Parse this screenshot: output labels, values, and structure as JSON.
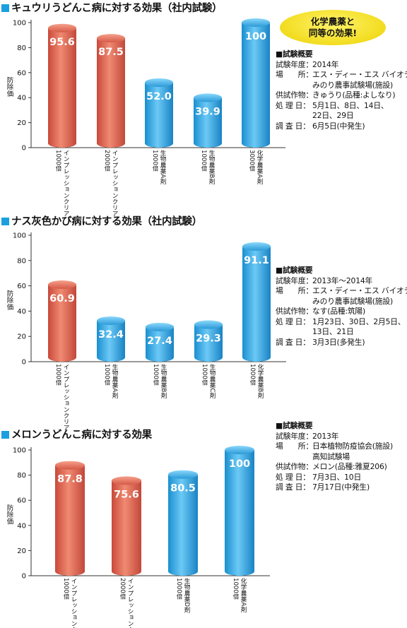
{
  "colors": {
    "accent": "#1aa0de",
    "red_bar": "#e06a55",
    "blue_bar": "#38aee8"
  },
  "sections": [
    {
      "title": "キュウリうどんこ病に対する効果（社内試験）",
      "badge": {
        "line1": "化学農薬と",
        "line2": "同等の効果!"
      },
      "info": {
        "heading": "■試験概要",
        "rows": [
          {
            "label": "試験年度：",
            "value": "2014年"
          },
          {
            "label": "場　　所：",
            "value": "エス・ディー・エス バイオテック"
          },
          {
            "label": "",
            "value": "みのり農事試験場(施設)"
          },
          {
            "label": "供試作物：",
            "value": "きゅうり(品種:よしなり)"
          },
          {
            "label": "処 理 日：",
            "value": "5月1日、8日、14日、"
          },
          {
            "label": "",
            "value": "22日、29日"
          },
          {
            "label": "調 査 日：",
            "value": "6月5日(中発生)"
          }
        ]
      }
    },
    {
      "title": "ナス灰色かび病に対する効果（社内試験）",
      "info": {
        "heading": "■試験概要",
        "rows": [
          {
            "label": "試験年度：",
            "value": "2013年〜2014年"
          },
          {
            "label": "場　　所：",
            "value": "エス・ディー・エス バイオテック"
          },
          {
            "label": "",
            "value": "みのり農事試験場(施設)"
          },
          {
            "label": "供試作物：",
            "value": "なす(品種:筑陽)"
          },
          {
            "label": "処 理 日：",
            "value": "1月23日、30日、2月5日、"
          },
          {
            "label": "",
            "value": "13日、21日"
          },
          {
            "label": "調 査 日：",
            "value": "3月3日(多発生)"
          }
        ]
      }
    },
    {
      "title": "メロンうどんこ病に対する効果",
      "info": {
        "heading": "■試験概要",
        "rows": [
          {
            "label": "試験年度：",
            "value": "2013年"
          },
          {
            "label": "場　　所：",
            "value": "日本植物防疫協会(施設)"
          },
          {
            "label": "",
            "value": "高知試験場"
          },
          {
            "label": "供試作物：",
            "value": "メロン(品種:雅夏206)"
          },
          {
            "label": "処 理 日：",
            "value": "7月3日、10日"
          },
          {
            "label": "調 査 日：",
            "value": "7月17日(中発生)"
          }
        ]
      }
    }
  ],
  "chart_data": [
    {
      "type": "bar",
      "title": "キュウリうどんこ病に対する効果（社内試験）",
      "ylabel": "防除価",
      "ylim": [
        0,
        100
      ],
      "yticks": [
        0,
        20,
        40,
        60,
        80,
        100
      ],
      "categories": [
        {
          "name": "インプレッションクリア",
          "dose": "1000倍",
          "color": "red"
        },
        {
          "name": "インプレッションクリア",
          "dose": "2000倍",
          "color": "red"
        },
        {
          "name": "生物農薬A剤",
          "dose": "1000倍",
          "color": "blue"
        },
        {
          "name": "生物農薬B剤",
          "dose": "1000倍",
          "color": "blue"
        },
        {
          "name": "化学農薬A剤",
          "dose": "3000倍",
          "color": "blue"
        }
      ],
      "values": [
        95.6,
        87.5,
        52.0,
        39.9,
        100
      ],
      "labels": [
        "95.6",
        "87.5",
        "52.0",
        "39.9",
        "100"
      ]
    },
    {
      "type": "bar",
      "title": "ナス灰色かび病に対する効果（社内試験）",
      "ylabel": "防除価",
      "ylim": [
        0,
        100
      ],
      "yticks": [
        0,
        20,
        40,
        60,
        80,
        100
      ],
      "categories": [
        {
          "name": "インプレッションクリア",
          "dose": "1000倍",
          "color": "red"
        },
        {
          "name": "生物農薬A剤",
          "dose": "1000倍",
          "color": "blue"
        },
        {
          "name": "生物農薬B剤",
          "dose": "1000倍",
          "color": "blue"
        },
        {
          "name": "生物農薬C剤",
          "dose": "1000倍",
          "color": "blue"
        },
        {
          "name": "化学農薬B剤",
          "dose": "1000倍",
          "color": "blue"
        }
      ],
      "values": [
        60.9,
        32.4,
        27.4,
        29.3,
        91.1
      ],
      "labels": [
        "60.9",
        "32.4",
        "27.4",
        "29.3",
        "91.1"
      ]
    },
    {
      "type": "bar",
      "title": "メロンうどんこ病に対する効果",
      "ylabel": "防除価",
      "ylim": [
        0,
        100
      ],
      "yticks": [
        0,
        20,
        40,
        60,
        80,
        100
      ],
      "categories": [
        {
          "name": "インプレッションクリア",
          "dose": "1000倍",
          "color": "red"
        },
        {
          "name": "インプレッションクリア",
          "dose": "2000倍",
          "color": "red"
        },
        {
          "name": "生物農薬D剤",
          "dose": "1000倍",
          "color": "blue"
        },
        {
          "name": "化学農薬A剤",
          "dose": "1000倍",
          "color": "blue"
        }
      ],
      "values": [
        87.8,
        75.6,
        80.5,
        100
      ],
      "labels": [
        "87.8",
        "75.6",
        "80.5",
        "100"
      ]
    }
  ]
}
